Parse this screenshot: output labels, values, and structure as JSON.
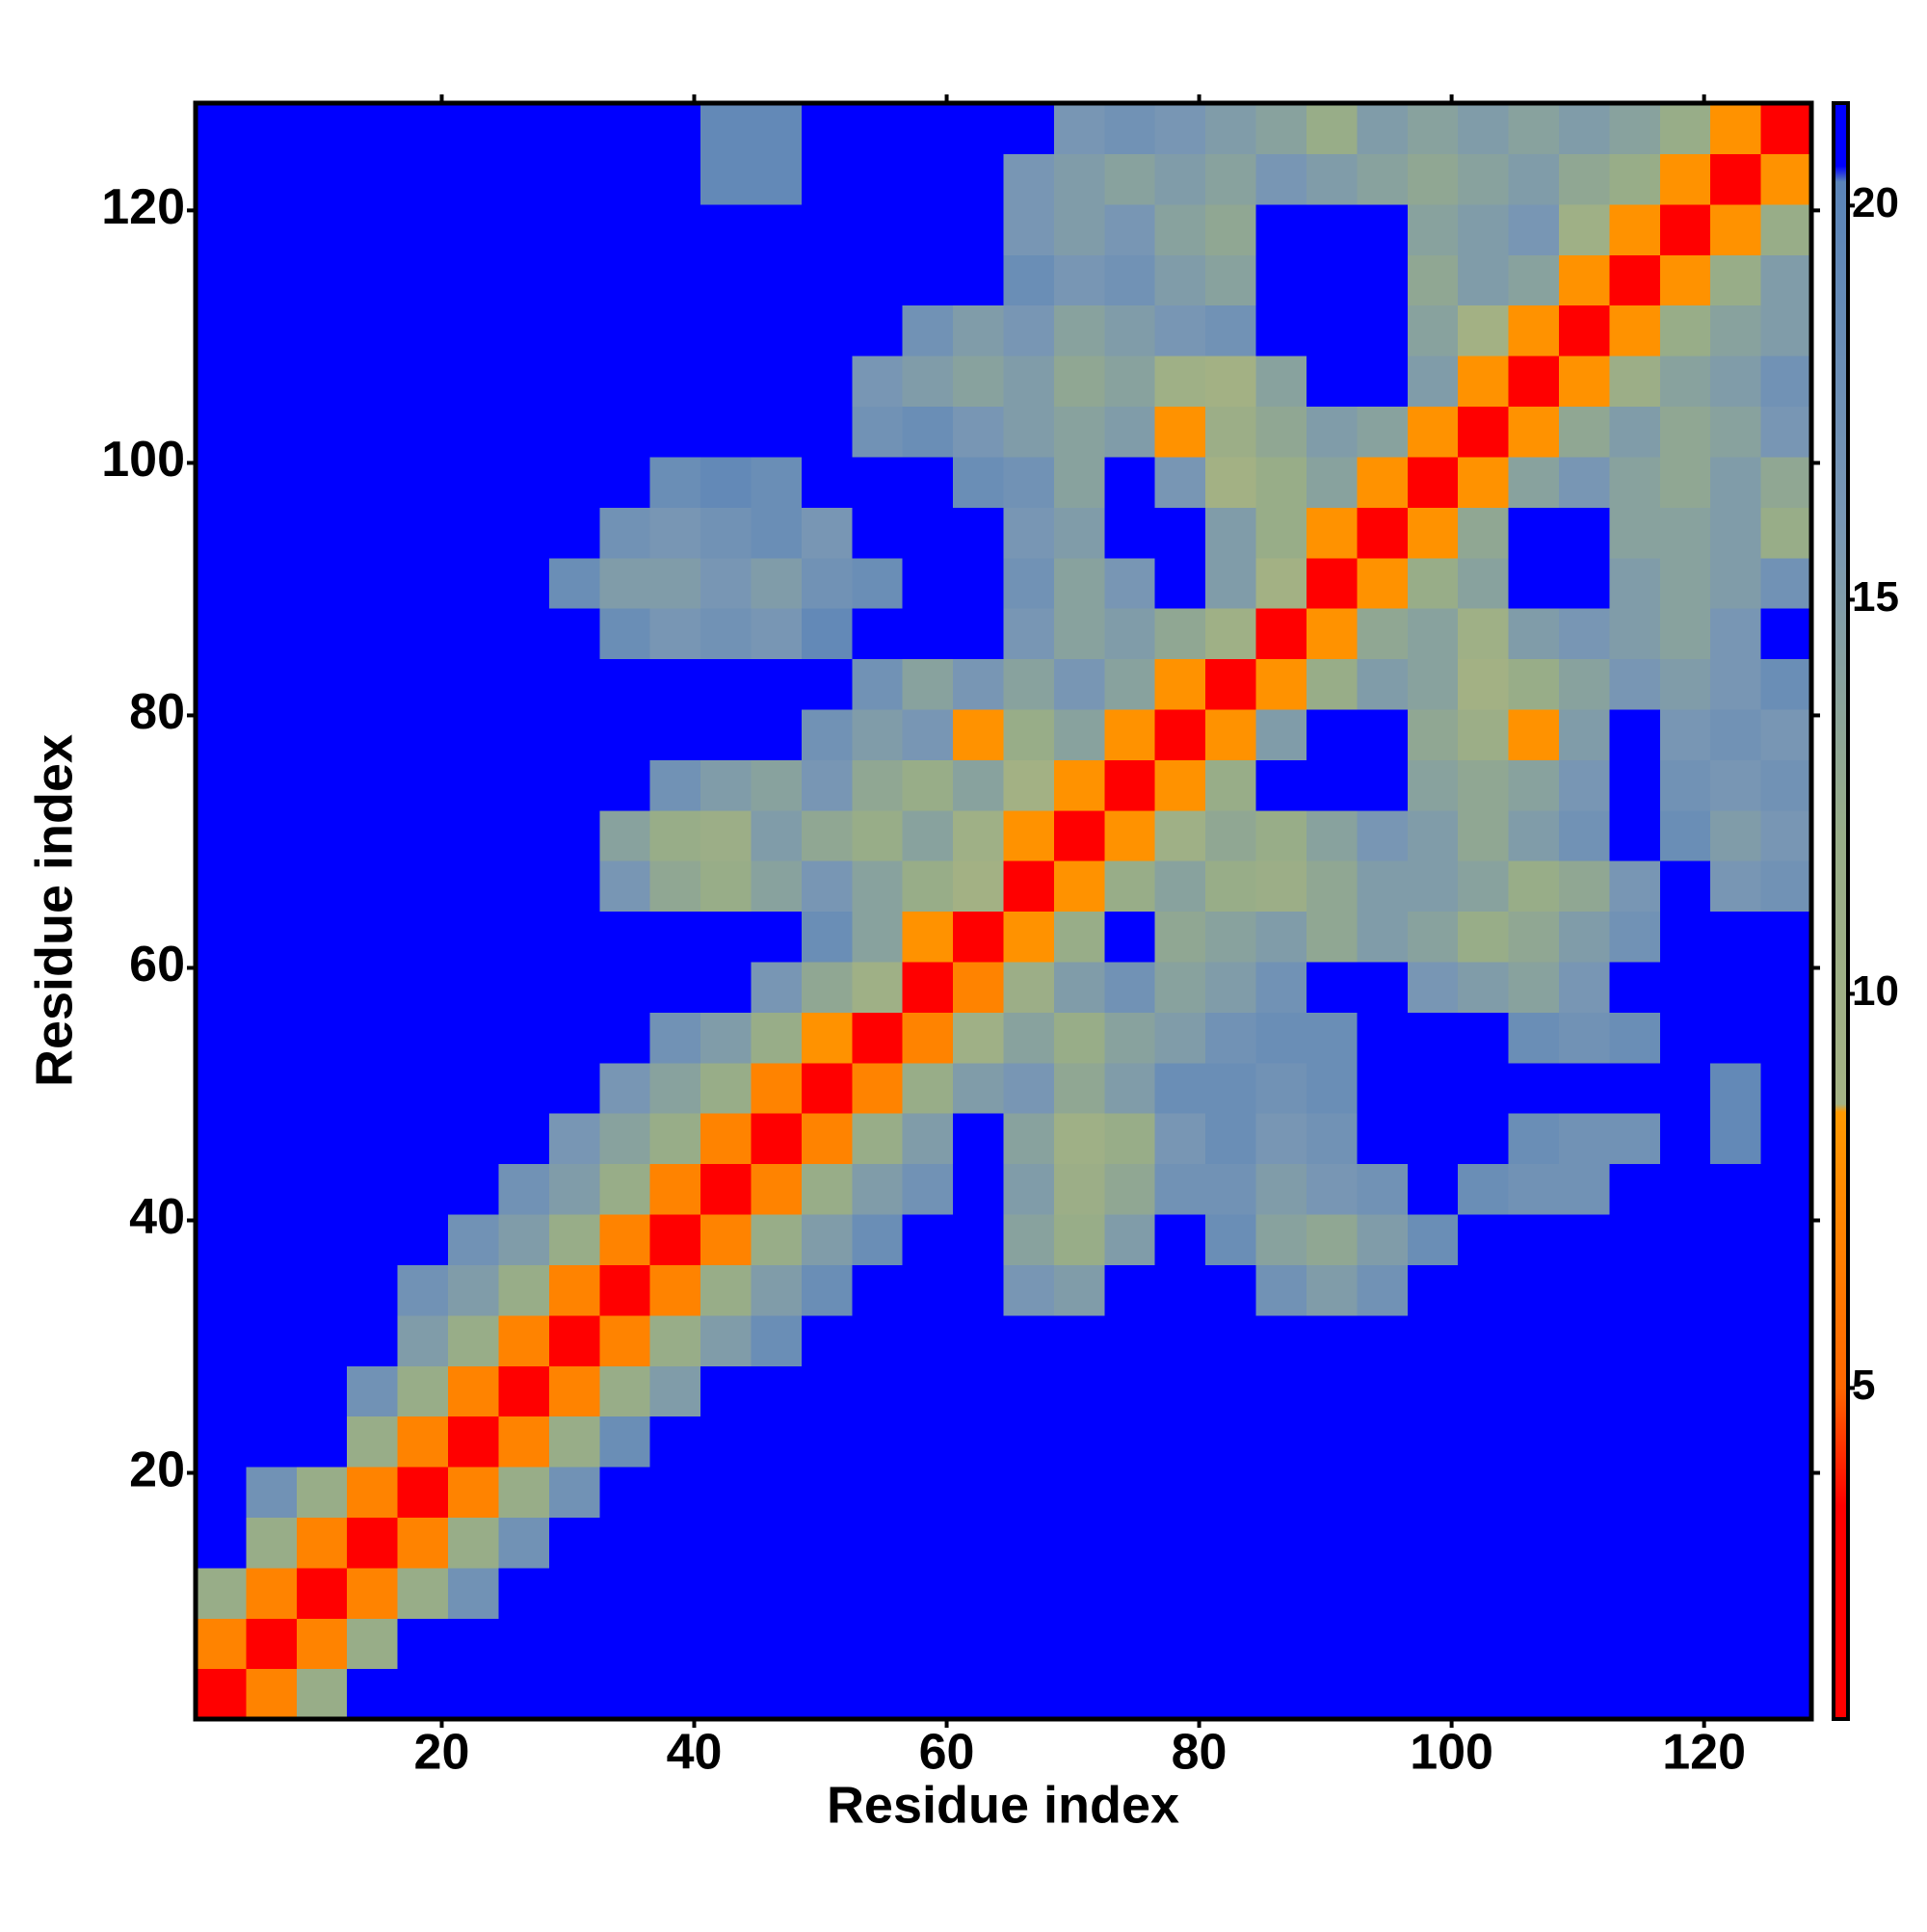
{
  "chart_data": {
    "type": "heatmap",
    "xlabel": "Residue index",
    "ylabel": "Residue index",
    "x": [
      2.5,
      6.5,
      10.5,
      14.5,
      18.5,
      22.5,
      26.5,
      30.5,
      34.5,
      38.5,
      42.5,
      46.5,
      50.5,
      54.5,
      58.5,
      62.5,
      66.5,
      70.5,
      74.5,
      78.5,
      82.5,
      86.5,
      90.5,
      94.5,
      98.5,
      102.5,
      106.5,
      110.5,
      114.5,
      118.5,
      122.5,
      126.5
    ],
    "y": [
      2.5,
      6.5,
      10.5,
      14.5,
      18.5,
      22.5,
      26.5,
      30.5,
      34.5,
      38.5,
      42.5,
      46.5,
      50.5,
      54.5,
      58.5,
      62.5,
      66.5,
      70.5,
      74.5,
      78.5,
      82.5,
      86.5,
      90.5,
      94.5,
      98.5,
      102.5,
      106.5,
      110.5,
      114.5,
      118.5,
      122.5,
      126.5
    ],
    "z": [
      [
        3,
        7,
        12,
        21,
        21,
        21,
        21,
        21,
        21,
        21,
        21,
        21,
        21,
        21,
        21,
        21,
        21,
        21,
        21,
        21,
        21,
        21,
        21,
        21,
        21,
        21,
        21,
        21,
        21,
        21,
        21,
        21
      ],
      [
        7,
        3,
        7,
        12,
        21,
        21,
        21,
        21,
        21,
        21,
        21,
        21,
        21,
        21,
        21,
        21,
        21,
        21,
        21,
        21,
        21,
        21,
        21,
        21,
        21,
        21,
        21,
        21,
        21,
        21,
        21,
        21
      ],
      [
        12,
        7,
        3,
        7,
        12,
        17,
        21,
        21,
        21,
        21,
        21,
        21,
        21,
        21,
        21,
        21,
        21,
        21,
        21,
        21,
        21,
        21,
        21,
        21,
        21,
        21,
        21,
        21,
        21,
        21,
        21,
        21
      ],
      [
        21,
        12,
        7,
        3,
        7,
        12,
        17,
        21,
        21,
        21,
        21,
        21,
        21,
        21,
        21,
        21,
        21,
        21,
        21,
        21,
        21,
        21,
        21,
        21,
        21,
        21,
        21,
        21,
        21,
        21,
        21,
        21
      ],
      [
        21,
        17,
        12,
        7,
        3,
        7,
        12,
        17,
        21,
        21,
        21,
        21,
        21,
        21,
        21,
        21,
        21,
        21,
        21,
        21,
        21,
        21,
        21,
        21,
        21,
        21,
        21,
        21,
        21,
        21,
        21,
        21
      ],
      [
        21,
        21,
        21,
        12,
        7,
        3,
        7,
        12,
        18,
        21,
        21,
        21,
        21,
        21,
        21,
        21,
        21,
        21,
        21,
        21,
        21,
        21,
        21,
        21,
        21,
        21,
        21,
        21,
        21,
        21,
        21,
        21
      ],
      [
        21,
        21,
        21,
        17,
        12,
        7,
        3,
        7,
        12,
        15,
        21,
        21,
        21,
        21,
        21,
        21,
        21,
        21,
        21,
        21,
        21,
        21,
        21,
        21,
        21,
        21,
        21,
        21,
        21,
        21,
        21,
        21
      ],
      [
        21,
        21,
        21,
        21,
        15,
        12,
        7,
        3,
        7,
        12,
        15,
        18,
        21,
        21,
        21,
        21,
        21,
        21,
        21,
        21,
        21,
        21,
        21,
        21,
        21,
        21,
        21,
        21,
        21,
        21,
        21,
        21
      ],
      [
        21,
        21,
        21,
        21,
        17,
        15,
        12,
        7,
        3,
        7,
        12,
        15,
        18,
        21,
        21,
        21,
        16,
        15,
        21,
        21,
        21,
        17,
        15,
        17,
        21,
        21,
        21,
        21,
        21,
        21,
        21,
        21
      ],
      [
        21,
        21,
        21,
        21,
        21,
        17,
        15,
        12,
        7,
        3,
        7,
        12,
        15,
        18,
        21,
        21,
        14,
        12,
        15,
        21,
        18,
        14,
        13,
        15,
        18,
        21,
        21,
        21,
        21,
        21,
        21,
        21
      ],
      [
        21,
        21,
        21,
        21,
        21,
        21,
        17,
        15,
        12,
        7,
        3,
        7,
        12,
        15,
        17,
        21,
        15,
        11,
        13,
        17,
        17,
        15,
        16,
        17,
        21,
        18,
        17,
        17,
        21,
        21,
        21,
        21
      ],
      [
        21,
        21,
        21,
        21,
        21,
        21,
        21,
        16,
        14,
        12,
        7,
        3,
        7,
        12,
        15,
        21,
        14,
        10,
        12,
        16,
        18,
        16,
        17,
        21,
        21,
        21,
        18,
        17,
        17,
        21,
        19,
        21
      ],
      [
        21,
        21,
        21,
        21,
        21,
        21,
        21,
        21,
        16,
        14,
        12,
        7,
        3,
        7,
        12,
        15,
        16,
        13,
        15,
        18,
        18,
        17,
        18,
        21,
        21,
        21,
        21,
        21,
        21,
        21,
        19,
        21
      ],
      [
        21,
        21,
        21,
        21,
        21,
        21,
        21,
        21,
        21,
        17,
        15,
        12,
        8,
        3,
        7,
        10,
        14,
        12,
        14,
        15,
        17,
        18,
        18,
        21,
        21,
        21,
        18,
        17,
        18,
        21,
        21,
        21
      ],
      [
        21,
        21,
        21,
        21,
        21,
        21,
        21,
        21,
        21,
        21,
        21,
        16,
        13,
        10,
        3,
        7,
        11,
        15,
        17,
        14,
        15,
        17,
        21,
        21,
        16,
        15,
        14,
        16,
        21,
        21,
        21,
        21
      ],
      [
        21,
        21,
        21,
        21,
        21,
        21,
        21,
        21,
        21,
        21,
        21,
        21,
        18,
        14,
        8,
        3,
        8,
        12,
        21,
        13,
        14,
        15,
        13,
        15,
        14,
        12,
        13,
        15,
        17,
        21,
        21,
        21
      ],
      [
        21,
        21,
        21,
        21,
        21,
        21,
        21,
        21,
        16,
        13,
        12,
        14,
        16,
        14,
        12,
        9,
        3,
        8,
        12,
        14,
        12,
        11,
        13,
        15,
        15,
        14,
        12,
        13,
        16,
        21,
        16,
        17
      ],
      [
        21,
        21,
        21,
        21,
        21,
        21,
        21,
        21,
        14,
        12,
        11,
        15,
        13,
        12,
        14,
        10,
        8,
        3,
        8,
        10,
        13,
        12,
        14,
        16,
        15,
        13,
        15,
        17,
        21,
        18,
        15,
        16
      ],
      [
        21,
        21,
        21,
        21,
        21,
        21,
        21,
        21,
        21,
        17,
        15,
        14,
        16,
        13,
        12,
        14,
        9,
        8,
        3,
        8,
        12,
        21,
        21,
        21,
        14,
        13,
        14,
        16,
        21,
        17,
        16,
        17
      ],
      [
        21,
        21,
        21,
        21,
        21,
        21,
        21,
        21,
        21,
        21,
        21,
        21,
        17,
        15,
        16,
        8,
        12,
        14,
        8,
        3,
        8,
        15,
        21,
        21,
        13,
        11,
        8,
        15,
        21,
        16,
        17,
        16
      ],
      [
        21,
        21,
        21,
        21,
        21,
        21,
        21,
        21,
        21,
        21,
        21,
        21,
        21,
        17,
        14,
        16,
        14,
        16,
        14,
        8,
        3,
        8,
        12,
        15,
        14,
        9,
        12,
        14,
        16,
        15,
        16,
        18
      ],
      [
        21,
        21,
        21,
        21,
        21,
        21,
        21,
        21,
        18,
        16,
        17,
        16,
        19,
        21,
        21,
        21,
        16,
        14,
        15,
        13,
        10,
        3,
        8,
        13,
        14,
        10,
        15,
        16,
        15,
        14,
        16,
        21
      ],
      [
        21,
        21,
        21,
        21,
        21,
        21,
        21,
        18,
        15,
        15,
        16,
        15,
        17,
        18,
        21,
        21,
        17,
        14,
        16,
        21,
        15,
        9,
        3,
        8,
        12,
        14,
        21,
        21,
        15,
        14,
        15,
        17
      ],
      [
        21,
        21,
        21,
        21,
        21,
        21,
        21,
        21,
        17,
        16,
        17,
        18,
        16,
        21,
        21,
        21,
        16,
        15,
        21,
        21,
        15,
        12,
        8,
        3,
        8,
        13,
        21,
        21,
        14,
        14,
        15,
        12
      ],
      [
        21,
        21,
        21,
        21,
        21,
        21,
        21,
        21,
        21,
        18,
        19,
        18,
        21,
        21,
        21,
        18,
        17,
        14,
        21,
        16,
        9,
        12,
        14,
        8,
        3,
        8,
        14,
        16,
        14,
        13,
        15,
        13
      ],
      [
        21,
        21,
        21,
        21,
        21,
        21,
        21,
        21,
        21,
        21,
        21,
        21,
        21,
        17,
        18,
        16,
        15,
        14,
        15,
        8,
        11,
        13,
        15,
        14,
        8,
        3,
        8,
        13,
        15,
        13,
        14,
        16
      ],
      [
        21,
        21,
        21,
        21,
        21,
        21,
        21,
        21,
        21,
        21,
        21,
        21,
        21,
        16,
        15,
        14,
        15,
        13,
        14,
        10,
        9,
        14,
        21,
        21,
        15,
        8,
        3,
        8,
        11,
        14,
        15,
        17
      ],
      [
        21,
        21,
        21,
        21,
        21,
        21,
        21,
        21,
        21,
        21,
        21,
        21,
        21,
        21,
        17,
        15,
        16,
        14,
        15,
        16,
        17,
        21,
        21,
        21,
        14,
        9,
        8,
        3,
        8,
        12,
        14,
        15
      ],
      [
        21,
        21,
        21,
        21,
        21,
        21,
        21,
        21,
        21,
        21,
        21,
        21,
        21,
        21,
        21,
        21,
        18,
        16,
        17,
        15,
        14,
        21,
        21,
        21,
        13,
        15,
        14,
        8,
        3,
        8,
        12,
        15
      ],
      [
        21,
        21,
        21,
        21,
        21,
        21,
        21,
        21,
        21,
        21,
        21,
        21,
        21,
        21,
        21,
        21,
        16,
        15,
        16,
        14,
        13,
        21,
        21,
        21,
        14,
        15,
        16,
        10,
        8,
        3,
        8,
        12
      ],
      [
        21,
        21,
        21,
        21,
        21,
        21,
        21,
        21,
        21,
        21,
        19,
        19,
        21,
        21,
        21,
        21,
        16,
        15,
        14,
        15,
        14,
        16,
        15,
        14,
        13,
        14,
        15,
        13,
        12,
        8,
        3,
        8
      ],
      [
        21,
        21,
        21,
        21,
        21,
        21,
        21,
        21,
        21,
        21,
        19,
        19,
        21,
        21,
        21,
        21,
        21,
        16,
        17,
        16,
        15,
        14,
        12,
        15,
        14,
        15,
        14,
        15,
        14,
        12,
        8,
        3
      ]
    ],
    "xlim": [
      0.5,
      128.5
    ],
    "ylim": [
      0.5,
      128.5
    ],
    "xticks": [
      20,
      40,
      60,
      80,
      100,
      120
    ],
    "yticks": [
      20,
      40,
      60,
      80,
      100,
      120
    ],
    "clim": [
      0.8,
      21.3
    ],
    "cticks": [
      5,
      10,
      15,
      20
    ],
    "colormap": [
      {
        "value": 0.8,
        "color": "#ff0000"
      },
      {
        "value": 3.5,
        "color": "#ff0000"
      },
      {
        "value": 5,
        "color": "#ff6600"
      },
      {
        "value": 8.5,
        "color": "#ff9900"
      },
      {
        "value": 8.6,
        "color": "#a4b284"
      },
      {
        "value": 12,
        "color": "#98ad88"
      },
      {
        "value": 16,
        "color": "#7896b4"
      },
      {
        "value": 20.3,
        "color": "#5a84b8"
      },
      {
        "value": 20.5,
        "color": "#0000ff"
      },
      {
        "value": 21.3,
        "color": "#0000ff"
      }
    ]
  }
}
